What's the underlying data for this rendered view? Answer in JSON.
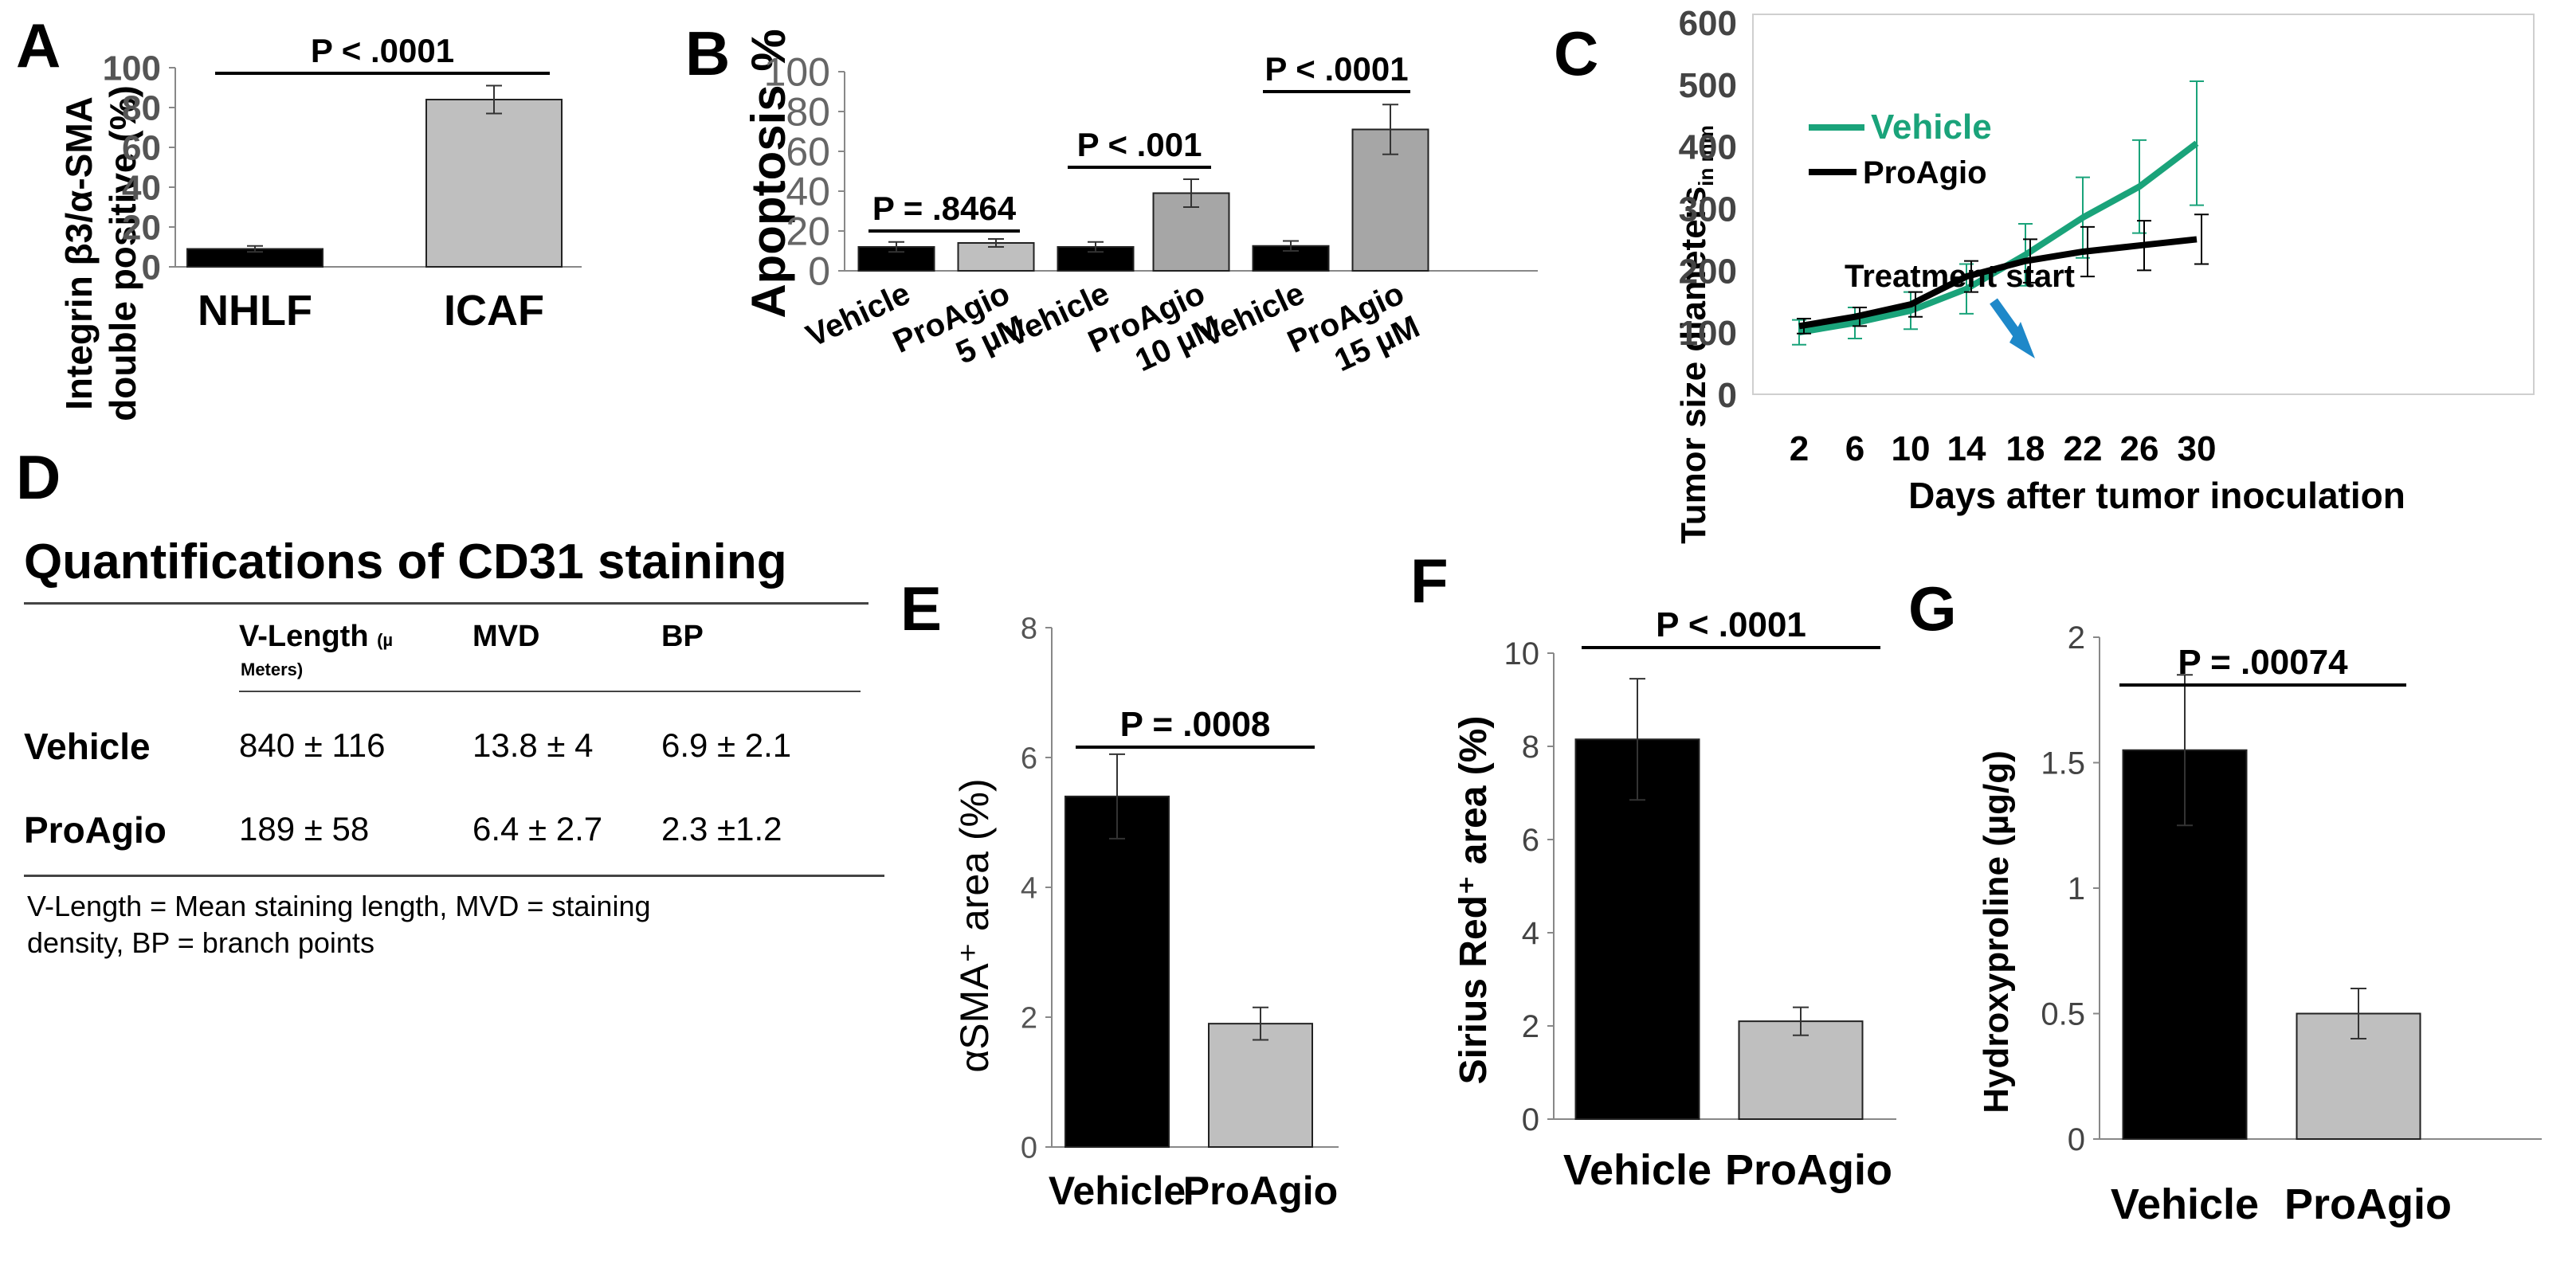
{
  "panel_labels": {
    "a": "A",
    "b": "B",
    "c": "C",
    "d": "D",
    "e": "E",
    "f": "F",
    "g": "G"
  },
  "colors": {
    "black_bar": "#000000",
    "grey_bar": "#bfbfbf",
    "mid_grey_bar": "#a6a6a6",
    "vehicle_line": "#1aa37a",
    "proagio_line": "#000000",
    "arrow": "#1e88c9"
  },
  "chart_data": [
    {
      "panel": "A",
      "type": "bar",
      "ylabel": "Integrin β3/α-SMA double positive (%)",
      "ylabel_line1": "Integrin β3/α-SMA",
      "ylabel_line2": "double positive (%)",
      "categories": [
        "NHLF",
        "ICAF"
      ],
      "values": [
        9,
        84
      ],
      "errors": [
        1.5,
        7
      ],
      "ylim": [
        0,
        100
      ],
      "yticks": [
        "0",
        "20",
        "40",
        "60",
        "80",
        "100"
      ],
      "annotation": "P < .0001"
    },
    {
      "panel": "B",
      "type": "bar",
      "ylabel": "Apoptosis %",
      "categories": [
        "Vehicle",
        "ProAgio 5 µM",
        "Vehicle",
        "ProAgio 10 µM",
        "Vehicle",
        "ProAgio 15 µM"
      ],
      "values": [
        12,
        14,
        12,
        39,
        12.5,
        71
      ],
      "errors": [
        2.5,
        2,
        2.5,
        7,
        2.5,
        12.5
      ],
      "ylim": [
        0,
        100
      ],
      "yticks": [
        "0",
        "20",
        "40",
        "60",
        "80",
        "100"
      ],
      "annotations": [
        "P = .8464",
        "P < .001",
        "P < .0001"
      ]
    },
    {
      "panel": "C",
      "type": "line",
      "ylabel": "Tumor size diameters",
      "ylabel_sub": "in mm",
      "xlabel": "Days after tumor inoculation",
      "x": [
        2,
        6,
        10,
        14,
        18,
        22,
        26,
        30
      ],
      "xticks": [
        "2",
        "6",
        "10",
        "14",
        "18",
        "22",
        "26",
        "30"
      ],
      "yticks": [
        "0",
        "100",
        "200",
        "300",
        "400",
        "500",
        "600"
      ],
      "ylim": [
        0,
        600
      ],
      "series": [
        {
          "name": "Vehicle",
          "values": [
            100,
            115,
            135,
            170,
            225,
            285,
            335,
            405
          ],
          "errors": [
            20,
            25,
            30,
            40,
            50,
            65,
            75,
            100
          ]
        },
        {
          "name": "ProAgio",
          "values": [
            110,
            125,
            145,
            190,
            215,
            230,
            240,
            250
          ],
          "errors": [
            12,
            15,
            20,
            25,
            35,
            40,
            40,
            40
          ]
        }
      ],
      "annotation": "Treatment start"
    },
    {
      "panel": "E",
      "type": "bar",
      "ylabel": "αSMA⁺ area (%)",
      "categories": [
        "Vehicle",
        "ProAgio"
      ],
      "values": [
        5.4,
        1.9
      ],
      "errors": [
        0.65,
        0.25
      ],
      "ylim": [
        0,
        8
      ],
      "yticks": [
        "0",
        "2",
        "4",
        "6",
        "8"
      ],
      "annotation": "P = .0008"
    },
    {
      "panel": "F",
      "type": "bar",
      "ylabel": "Sirius Red⁺ area (%)",
      "categories": [
        "Vehicle",
        "ProAgio"
      ],
      "values": [
        8.15,
        2.1
      ],
      "errors": [
        1.3,
        0.3
      ],
      "ylim": [
        0,
        10
      ],
      "yticks": [
        "0",
        "2",
        "4",
        "6",
        "8",
        "10"
      ],
      "annotation": "P < .0001"
    },
    {
      "panel": "G",
      "type": "bar",
      "ylabel": "Hydroxyproline (µg/g)",
      "categories": [
        "Vehicle",
        "ProAgio"
      ],
      "values": [
        1.55,
        0.5
      ],
      "errors": [
        0.3,
        0.1
      ],
      "ylim": [
        0,
        2
      ],
      "yticks": [
        "0",
        "0.5",
        "1",
        "1.5",
        "2"
      ],
      "annotation": "P = .00074"
    }
  ],
  "table": {
    "title": "Quantifications of CD31 staining",
    "col_vlength": "V-Length",
    "col_vlength_unit": "(µ",
    "col_vlength_unit2": "Meters)",
    "col_mvd": "MVD",
    "col_bp": "BP",
    "rows": [
      {
        "label": "Vehicle",
        "vlength": "840 ± 116",
        "mvd": "13.8 ± 4",
        "bp": "6.9 ± 2.1"
      },
      {
        "label": "ProAgio",
        "vlength": "189 ± 58",
        "mvd": "6.4 ± 2.7",
        "bp": "2.3 ±1.2"
      }
    ],
    "note_line1": "V-Length = Mean staining length, MVD = staining",
    "note_line2": "density,  BP = branch points"
  }
}
